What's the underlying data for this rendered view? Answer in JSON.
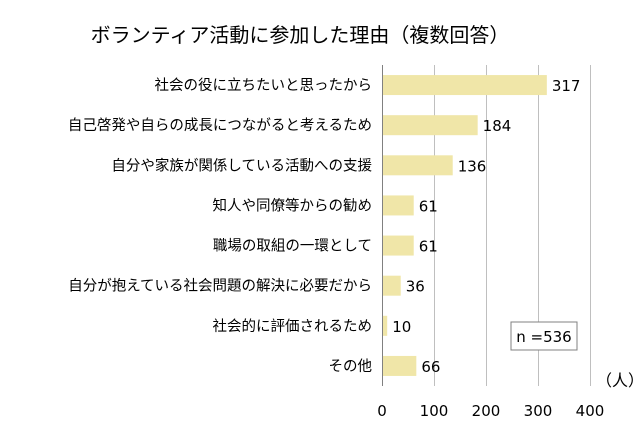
{
  "chart_data": {
    "type": "bar",
    "orientation": "horizontal",
    "title": "ボランティア活動に参加した理由（複数回答）",
    "categories": [
      "社会の役に立ちたいと思ったから",
      "自己啓発や自らの成長につながると考えるため",
      "自分や家族が関係している活動への支援",
      "知人や同僚等からの勧め",
      "職場の取組の一環として",
      "自分が抱えている社会問題の解決に必要だから",
      "社会的に評価されるため",
      "その他"
    ],
    "values": [
      317,
      184,
      136,
      61,
      61,
      36,
      10,
      66
    ],
    "value_labels": [
      "317",
      "184",
      "136",
      "61",
      "61",
      "36",
      "10",
      "66"
    ],
    "xlim": [
      0,
      400
    ],
    "x_ticks": [
      "0",
      "100",
      "200",
      "300",
      "400"
    ],
    "x_tick_values": [
      0,
      100,
      200,
      300,
      400
    ],
    "unit_label": "（人）",
    "sample_note": "n =536",
    "grid": true,
    "bar_color": "#f0e6a8",
    "grid_color": "#bfbfbf"
  }
}
